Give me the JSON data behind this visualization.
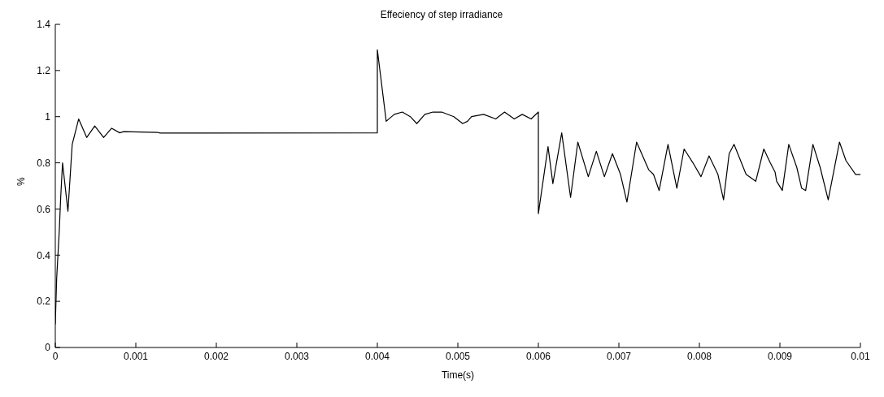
{
  "chart_data": {
    "type": "line",
    "title": "Effeciency of step irradiance",
    "xlabel": "Time(s)",
    "ylabel": "%",
    "xlim": [
      0,
      0.01
    ],
    "xticks": [
      0,
      0.001,
      0.002,
      0.003,
      0.004,
      0.005,
      0.006,
      0.007,
      0.008,
      0.009,
      0.01
    ],
    "ylim": [
      0,
      1.4
    ],
    "yticks": [
      0,
      0.2,
      0.4,
      0.6,
      0.8,
      1,
      1.2,
      1.4
    ],
    "grid": false,
    "marker": "none",
    "line_style": "solid",
    "series": [
      {
        "color": "#000000",
        "x": [
          0,
          1.7e-05,
          5e-05,
          6.7e-05,
          9e-05,
          0.000157,
          0.00021,
          0.00029,
          0.00039,
          0.00049,
          0.0006,
          0.0007,
          0.0008,
          0.00085,
          0.00127,
          0.0013,
          0.004,
          0.004,
          0.00411,
          0.00421,
          0.00431,
          0.00441,
          0.00449,
          0.00459,
          0.00469,
          0.0048,
          0.00495,
          0.00506,
          0.00512,
          0.00517,
          0.00532,
          0.00547,
          0.00558,
          0.0057,
          0.0058,
          0.00591,
          0.006,
          0.006,
          0.00612,
          0.00618,
          0.00629,
          0.0064,
          0.00649,
          0.00662,
          0.00672,
          0.00682,
          0.00692,
          0.00702,
          0.0071,
          0.00722,
          0.00737,
          0.00743,
          0.0075,
          0.00761,
          0.00772,
          0.00781,
          0.00792,
          0.00802,
          0.00812,
          0.00823,
          0.0083,
          0.00837,
          0.00843,
          0.00858,
          0.0087,
          0.0088,
          0.00888,
          0.00894,
          0.00896,
          0.00903,
          0.00911,
          0.00921,
          0.00927,
          0.00932,
          0.00941,
          0.0095,
          0.0096,
          0.00974,
          0.00982,
          0.00994,
          0.01
        ],
        "values": [
          0.1,
          0.3,
          0.51,
          0.65,
          0.8,
          0.59,
          0.88,
          0.99,
          0.91,
          0.96,
          0.91,
          0.95,
          0.93,
          0.935,
          0.932,
          0.929,
          0.93,
          1.29,
          0.98,
          1.01,
          1.02,
          1.0,
          0.97,
          1.01,
          1.02,
          1.02,
          1.0,
          0.97,
          0.98,
          1.0,
          1.01,
          0.99,
          1.02,
          0.99,
          1.01,
          0.99,
          1.02,
          0.58,
          0.87,
          0.71,
          0.93,
          0.65,
          0.89,
          0.74,
          0.85,
          0.74,
          0.84,
          0.75,
          0.63,
          0.89,
          0.77,
          0.75,
          0.68,
          0.88,
          0.69,
          0.86,
          0.8,
          0.74,
          0.83,
          0.75,
          0.64,
          0.84,
          0.88,
          0.75,
          0.72,
          0.86,
          0.8,
          0.76,
          0.72,
          0.68,
          0.88,
          0.78,
          0.69,
          0.68,
          0.88,
          0.78,
          0.64,
          0.89,
          0.81,
          0.75,
          0.75
        ]
      }
    ]
  }
}
